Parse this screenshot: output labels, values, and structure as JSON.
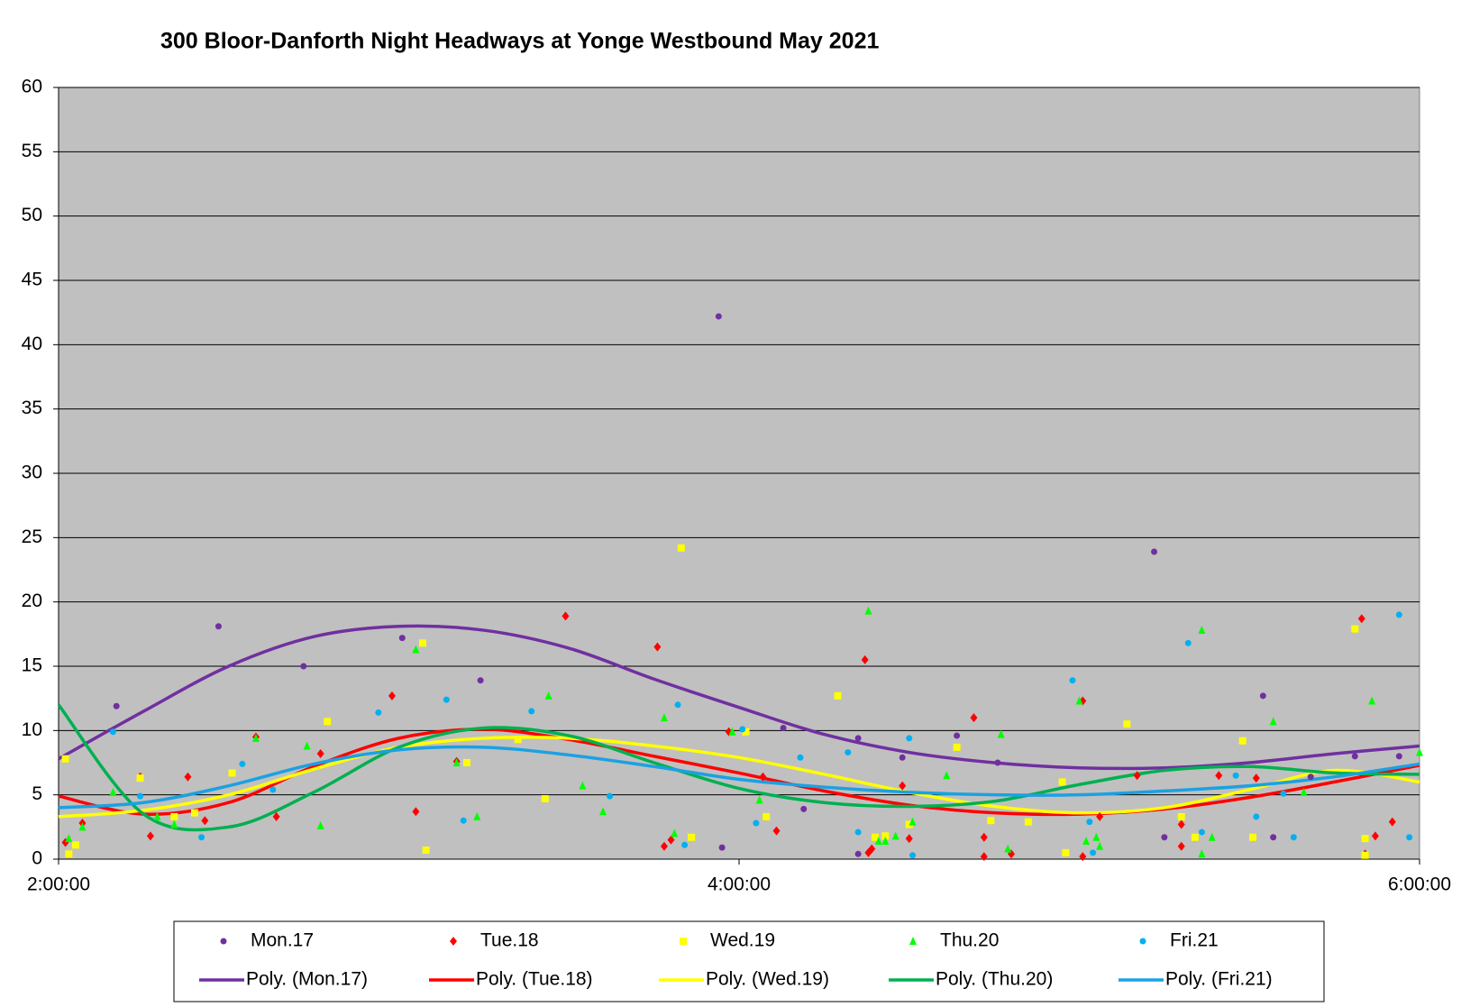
{
  "chart_data": {
    "type": "scatter",
    "title": "300 Bloor-Danforth Night Headways at Yonge Westbound May 2021",
    "xlim": [
      2,
      6
    ],
    "xticks": [
      {
        "value": 2,
        "label": "2:00:00"
      },
      {
        "value": 4,
        "label": "4:00:00"
      },
      {
        "value": 6,
        "label": "6:00:00"
      }
    ],
    "ylim": [
      0,
      60
    ],
    "yticks": [
      0,
      5,
      10,
      15,
      20,
      25,
      30,
      35,
      40,
      45,
      50,
      55,
      60
    ],
    "grid": true,
    "plot_background": "#c0c0c0",
    "legend": "bottom",
    "series": [
      {
        "name": "Mon.17",
        "color": "#7030a0",
        "marker": "circle",
        "x": [
          2.17,
          2.47,
          2.72,
          3.01,
          3.24,
          3.94,
          3.95,
          4.13,
          4.19,
          4.35,
          4.35,
          4.48,
          4.64,
          4.76,
          5.22,
          5.25,
          5.54,
          5.57,
          5.68,
          5.81,
          5.94
        ],
        "values": [
          11.9,
          18.1,
          15.0,
          17.2,
          13.9,
          42.2,
          0.9,
          10.2,
          3.9,
          9.4,
          0.4,
          7.9,
          9.6,
          7.5,
          23.9,
          1.7,
          12.7,
          1.7,
          6.4,
          8.0,
          8.0
        ]
      },
      {
        "name": "Tue.18",
        "color": "#ff0000",
        "marker": "diamond",
        "x": [
          2.02,
          2.07,
          2.24,
          2.27,
          2.38,
          2.43,
          2.58,
          2.64,
          2.77,
          2.98,
          3.05,
          3.17,
          3.49,
          3.76,
          3.78,
          3.8,
          3.97,
          4.07,
          4.11,
          4.37,
          4.38,
          4.39,
          4.48,
          4.5,
          4.69,
          4.72,
          4.72,
          4.8,
          5.01,
          5.01,
          5.06,
          5.17,
          5.3,
          5.3,
          5.41,
          5.52,
          5.83,
          5.84,
          5.87,
          5.92
        ],
        "values": [
          1.3,
          2.8,
          6.4,
          1.8,
          6.4,
          3.0,
          9.5,
          3.3,
          8.2,
          12.7,
          3.7,
          7.6,
          18.9,
          16.5,
          1.0,
          1.5,
          9.9,
          6.4,
          2.2,
          15.5,
          0.5,
          0.8,
          5.7,
          1.6,
          11.0,
          1.7,
          0.2,
          0.4,
          12.3,
          0.2,
          3.3,
          6.5,
          2.7,
          1.0,
          6.5,
          6.3,
          18.7,
          0.4,
          1.8,
          2.9
        ]
      },
      {
        "name": "Wed.19",
        "color": "#ffff00",
        "marker": "square",
        "x": [
          2.02,
          2.03,
          2.05,
          2.24,
          2.34,
          2.4,
          2.51,
          2.79,
          3.07,
          3.08,
          3.2,
          3.35,
          3.43,
          3.83,
          3.86,
          4.02,
          4.08,
          4.29,
          4.4,
          4.43,
          4.5,
          4.64,
          4.74,
          4.85,
          4.95,
          4.96,
          5.14,
          5.3,
          5.34,
          5.48,
          5.51,
          5.81,
          5.84,
          5.84
        ],
        "values": [
          7.8,
          0.4,
          1.1,
          6.3,
          3.3,
          3.6,
          6.7,
          10.7,
          16.8,
          0.7,
          7.5,
          9.3,
          4.7,
          24.2,
          1.7,
          9.9,
          3.3,
          12.7,
          1.7,
          1.8,
          2.7,
          8.7,
          3.0,
          2.9,
          6.0,
          0.5,
          10.5,
          3.3,
          1.7,
          9.2,
          1.7,
          17.9,
          1.6,
          0.3
        ]
      },
      {
        "name": "Thu.20",
        "color": "#00ff00",
        "marker": "triangle",
        "x": [
          2.03,
          2.07,
          2.16,
          2.29,
          2.34,
          2.58,
          2.73,
          2.77,
          3.05,
          3.17,
          3.23,
          3.44,
          3.54,
          3.6,
          3.78,
          3.81,
          3.98,
          4.06,
          4.38,
          4.41,
          4.43,
          4.46,
          4.51,
          4.61,
          4.77,
          4.79,
          5.0,
          5.02,
          5.05,
          5.06,
          5.36,
          5.36,
          5.39,
          5.57,
          5.66,
          5.86,
          6.0
        ],
        "values": [
          1.6,
          2.5,
          5.2,
          3.3,
          2.7,
          9.4,
          8.8,
          2.6,
          16.3,
          7.5,
          3.3,
          12.7,
          5.7,
          3.7,
          11.0,
          2.0,
          9.9,
          4.6,
          19.3,
          1.4,
          1.4,
          1.8,
          2.9,
          6.5,
          9.7,
          0.8,
          12.3,
          1.4,
          1.7,
          1.0,
          17.8,
          0.4,
          1.7,
          10.7,
          5.2,
          12.3,
          8.3
        ]
      },
      {
        "name": "Fri.21",
        "color": "#00b0f0",
        "marker": "circle",
        "x": [
          2.16,
          2.24,
          2.42,
          2.54,
          2.63,
          2.94,
          3.14,
          3.19,
          3.39,
          3.62,
          3.82,
          3.84,
          4.01,
          4.05,
          4.18,
          4.32,
          4.35,
          4.5,
          4.51,
          4.98,
          5.03,
          5.04,
          5.32,
          5.36,
          5.46,
          5.52,
          5.6,
          5.63,
          5.94,
          5.97
        ],
        "values": [
          9.9,
          4.9,
          1.7,
          7.4,
          5.4,
          11.4,
          12.4,
          3.0,
          11.5,
          4.9,
          12.0,
          1.1,
          10.1,
          2.8,
          7.9,
          8.3,
          2.1,
          9.4,
          0.3,
          13.9,
          2.9,
          0.5,
          16.8,
          2.1,
          6.5,
          3.3,
          5.1,
          1.7,
          19.0,
          1.7
        ]
      }
    ],
    "trend_x": [
      2,
      2.25,
      2.5,
      2.75,
      3,
      3.25,
      3.5,
      3.75,
      4,
      4.25,
      4.5,
      4.75,
      5,
      5.25,
      5.5,
      5.75,
      6
    ],
    "trendlines": [
      {
        "name": "Poly. (Mon.17)",
        "color": "#7030a0",
        "values": [
          7.8,
          11.5,
          15.0,
          17.3,
          18.1,
          17.8,
          16.4,
          14.0,
          11.8,
          9.7,
          8.3,
          7.5,
          7.1,
          7.1,
          7.5,
          8.2,
          8.8
        ]
      },
      {
        "name": "Poly. (Tue.18)",
        "color": "#ff0000",
        "values": [
          4.9,
          3.5,
          4.4,
          7.2,
          9.4,
          10.1,
          9.3,
          8.0,
          6.7,
          5.3,
          4.2,
          3.6,
          3.5,
          3.9,
          4.8,
          6.0,
          7.3
        ]
      },
      {
        "name": "Poly. (Wed.19)",
        "color": "#ffff00",
        "values": [
          3.3,
          3.8,
          5.0,
          7.0,
          8.7,
          9.4,
          9.4,
          8.8,
          7.9,
          6.6,
          5.2,
          4.1,
          3.6,
          4.0,
          5.4,
          6.9,
          6.0
        ]
      },
      {
        "name": "Poly. (Thu.20)",
        "color": "#00b050",
        "values": [
          12,
          3.5,
          2.5,
          5.2,
          8.7,
          10.2,
          9.6,
          7.5,
          5.5,
          4.4,
          4.1,
          4.5,
          5.8,
          6.9,
          7.2,
          6.7,
          6.6
        ]
      },
      {
        "name": "Poly. (Fri.21)",
        "color": "#1ba1e2",
        "values": [
          4.0,
          4.4,
          5.7,
          7.4,
          8.5,
          8.7,
          8.1,
          7.2,
          6.2,
          5.6,
          5.2,
          5.0,
          5.0,
          5.3,
          5.7,
          6.4,
          7.4
        ]
      }
    ]
  }
}
